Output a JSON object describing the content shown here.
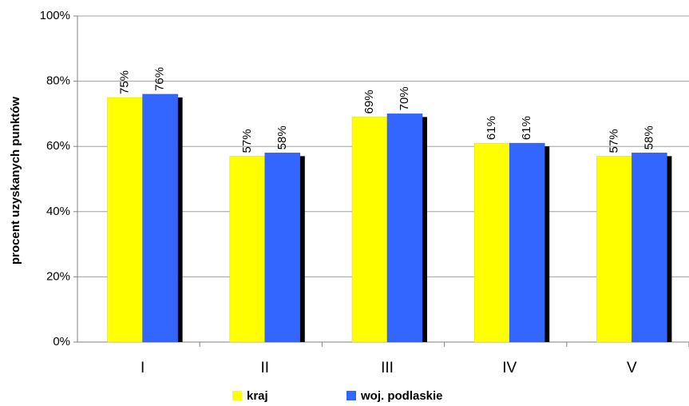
{
  "chart_data": {
    "type": "bar",
    "y_label": "procent uzyskanych  punktów",
    "categories": [
      "I",
      "II",
      "III",
      "IV",
      "V"
    ],
    "series": [
      {
        "name": "kraj",
        "color": "#ffff00",
        "values": [
          75,
          57,
          69,
          61,
          57
        ],
        "value_labels": [
          "75%",
          "57%",
          "69%",
          "61%",
          "57%"
        ]
      },
      {
        "name": "woj. podlaskie",
        "color": "#3366ff",
        "values": [
          76,
          58,
          70,
          61,
          58
        ],
        "value_labels": [
          "76%",
          "58%",
          "70%",
          "61%",
          "58%"
        ]
      }
    ],
    "ylim": [
      0,
      100
    ],
    "yticks": [
      {
        "value": 0,
        "label": "0%"
      },
      {
        "value": 20,
        "label": "20%"
      },
      {
        "value": 40,
        "label": "40%"
      },
      {
        "value": 60,
        "label": "60%"
      },
      {
        "value": 80,
        "label": "80%"
      },
      {
        "value": 100,
        "label": "100%"
      }
    ],
    "grid": true,
    "legend": "bottom"
  }
}
